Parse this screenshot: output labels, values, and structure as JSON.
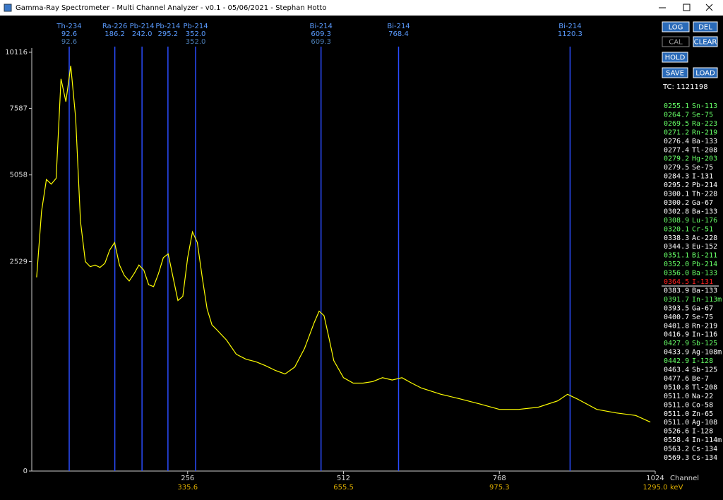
{
  "window": {
    "title": "Gamma-Ray Spectrometer - Multi Channel Analyzer - v0.1 - 05/06/2021 - Stephan Hotto"
  },
  "chart_data": {
    "type": "line",
    "color": "#ffff00",
    "yscale": "sqrt",
    "x_label": "Channel",
    "x2_label": "keV",
    "x": [
      8,
      16,
      24,
      32,
      40,
      48,
      56,
      64,
      72,
      80,
      88,
      96,
      104,
      112,
      120,
      128,
      136,
      144,
      152,
      160,
      168,
      176,
      184,
      192,
      200,
      208,
      216,
      224,
      232,
      240,
      248,
      256,
      264,
      272,
      280,
      288,
      296,
      304,
      320,
      336,
      352,
      368,
      384,
      400,
      416,
      432,
      448,
      464,
      472,
      480,
      488,
      496,
      512,
      528,
      544,
      560,
      576,
      592,
      608,
      624,
      640,
      672,
      704,
      736,
      768,
      800,
      832,
      864,
      880,
      896,
      928,
      960,
      992,
      1016
    ],
    "values": [
      2164,
      3880,
      4904,
      4750,
      4942,
      8872,
      7868,
      9474,
      7209,
      3591,
      2529,
      2407,
      2448,
      2391,
      2488,
      2819,
      3012,
      2448,
      2205,
      2083,
      2245,
      2448,
      2326,
      2002,
      1962,
      2245,
      2625,
      2722,
      2164,
      1678,
      1759,
      2625,
      3301,
      3012,
      2164,
      1516,
      1232,
      1151,
      989,
      786,
      721,
      689,
      640,
      584,
      543,
      624,
      867,
      1273,
      1475,
      1394,
      1029,
      705,
      503,
      446,
      446,
      462,
      503,
      478,
      503,
      446,
      397,
      340,
      300,
      259,
      219,
      219,
      235,
      284,
      340,
      300,
      219,
      195,
      178,
      138
    ],
    "xlim": [
      0,
      1024
    ],
    "xticks": [
      256,
      512,
      768,
      1024
    ],
    "x2lim": [
      15.8,
      1295.0
    ],
    "x2ticks": [
      335.6,
      655.5,
      975.3,
      {
        "value": 1295.0,
        "label": "1295.0"
      }
    ],
    "ylim": [
      0,
      10116
    ],
    "yticks": [
      0,
      2529,
      5058,
      7587,
      10116
    ],
    "markers": [
      {
        "name": "Th-234",
        "energy": 92.6,
        "library": 92.6
      },
      {
        "name": "Ra-226",
        "energy": 186.2
      },
      {
        "name": "Pb-214",
        "energy": {
          "value": 242.0,
          "label": "242.0"
        }
      },
      {
        "name": "Pb-214",
        "energy": 295.2
      },
      {
        "name": "Pb-214",
        "energy": {
          "value": 352.0,
          "label": "352.0"
        },
        "library": {
          "value": 352.0,
          "label": "352.0"
        }
      },
      {
        "name": "Bi-214",
        "energy": 609.3,
        "library": 609.3
      },
      {
        "name": "Bi-214",
        "energy": 768.4
      },
      {
        "name": "Bi-214",
        "energy": 1120.3
      }
    ]
  },
  "controls": {
    "buttons": [
      "LOG",
      "DEL",
      "CAL",
      "CLEAR",
      "HOLD",
      "SAVE",
      "LOAD"
    ],
    "total_counts": "TC: 1121198"
  },
  "isotopes": [
    {
      "energy": "0255.1",
      "name": "Sn-113",
      "color": "#66ff66"
    },
    {
      "energy": "0264.7",
      "name": "Se-75",
      "color": "#66ff66"
    },
    {
      "energy": "0269.5",
      "name": "Ra-223",
      "color": "#66ff66"
    },
    {
      "energy": "0271.2",
      "name": "Rn-219",
      "color": "#66ff66"
    },
    {
      "energy": "0276.4",
      "name": "Ba-133",
      "color": "#ffffff"
    },
    {
      "energy": "0277.4",
      "name": "Tl-208",
      "color": "#ffffff"
    },
    {
      "energy": "0279.2",
      "name": "Hg-203",
      "color": "#66ff66"
    },
    {
      "energy": "0279.5",
      "name": "Se-75",
      "color": "#ffffff"
    },
    {
      "energy": "0284.3",
      "name": "I-131",
      "color": "#ffffff"
    },
    {
      "energy": "0295.2",
      "name": "Pb-214",
      "color": "#ffffff"
    },
    {
      "energy": "0300.1",
      "name": "Th-228",
      "color": "#ffffff"
    },
    {
      "energy": "0300.2",
      "name": "Ga-67",
      "color": "#ffffff"
    },
    {
      "energy": "0302.8",
      "name": "Ba-133",
      "color": "#ffffff"
    },
    {
      "energy": "0308.9",
      "name": "Lu-176",
      "color": "#66ff66"
    },
    {
      "energy": "0320.1",
      "name": "Cr-51",
      "color": "#66ff66"
    },
    {
      "energy": "0338.3",
      "name": "Ac-228",
      "color": "#ffffff"
    },
    {
      "energy": "0344.3",
      "name": "Eu-152",
      "color": "#ffffff"
    },
    {
      "energy": "0351.1",
      "name": "Bi-211",
      "color": "#66ff66"
    },
    {
      "energy": "0352.0",
      "name": "Pb-214",
      "color": "#66ff66"
    },
    {
      "energy": "0356.0",
      "name": "Ba-133",
      "color": "#66ff66"
    },
    {
      "energy": "0364.5",
      "name": "I-131",
      "color": "#ff2020",
      "selected": true
    },
    {
      "energy": "0383.9",
      "name": "Ba-133",
      "color": "#ffffff"
    },
    {
      "energy": "0391.7",
      "name": "In-113m",
      "color": "#66ff66"
    },
    {
      "energy": "0393.5",
      "name": "Ga-67",
      "color": "#ffffff"
    },
    {
      "energy": "0400.7",
      "name": "Se-75",
      "color": "#ffffff"
    },
    {
      "energy": "0401.8",
      "name": "Rn-219",
      "color": "#ffffff"
    },
    {
      "energy": "0416.9",
      "name": "In-116",
      "color": "#ffffff"
    },
    {
      "energy": "0427.9",
      "name": "Sb-125",
      "color": "#66ff66"
    },
    {
      "energy": "0433.9",
      "name": "Ag-108m",
      "color": "#ffffff"
    },
    {
      "energy": "0442.9",
      "name": "I-128",
      "color": "#66ff66"
    },
    {
      "energy": "0463.4",
      "name": "Sb-125",
      "color": "#ffffff"
    },
    {
      "energy": "0477.6",
      "name": "Be-7",
      "color": "#ffffff"
    },
    {
      "energy": "0510.8",
      "name": "Tl-208",
      "color": "#ffffff"
    },
    {
      "energy": "0511.0",
      "name": "Na-22",
      "color": "#ffffff"
    },
    {
      "energy": "0511.0",
      "name": "Co-58",
      "color": "#ffffff"
    },
    {
      "energy": "0511.0",
      "name": "Zn-65",
      "color": "#ffffff"
    },
    {
      "energy": "0511.0",
      "name": "Ag-108",
      "color": "#ffffff"
    },
    {
      "energy": "0526.6",
      "name": "I-128",
      "color": "#ffffff"
    },
    {
      "energy": "0558.4",
      "name": "In-114m",
      "color": "#ffffff"
    },
    {
      "energy": "0563.2",
      "name": "Cs-134",
      "color": "#ffffff"
    },
    {
      "energy": "0569.3",
      "name": "Cs-134",
      "color": "#ffffff"
    }
  ]
}
